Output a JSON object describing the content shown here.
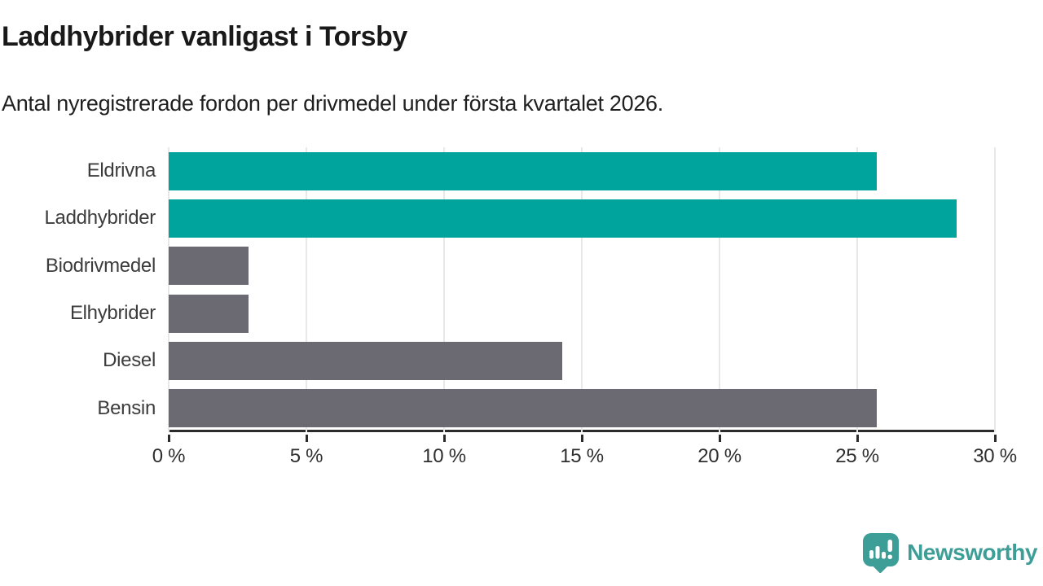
{
  "header": {
    "title": "Laddhybrider vanligast i Torsby",
    "subtitle": "Antal nyregistrerade fordon per drivmedel under första kvartalet 2026."
  },
  "chart_data": {
    "type": "bar",
    "orientation": "horizontal",
    "title": "Laddhybrider vanligast i Torsby",
    "subtitle": "Antal nyregistrerade fordon per drivmedel under första kvartalet 2026.",
    "categories": [
      "Eldrivna",
      "Laddhybrider",
      "Biodrivmedel",
      "Elhybrider",
      "Diesel",
      "Bensin"
    ],
    "values": [
      25.7,
      28.6,
      2.9,
      2.9,
      14.3,
      25.7
    ],
    "unit": "%",
    "bar_colors": [
      "#00a49c",
      "#00a49c",
      "#6b6a72",
      "#6b6a72",
      "#6b6a72",
      "#6b6a72"
    ],
    "highlight_color": "#00a49c",
    "base_color": "#6b6a72",
    "xlim": [
      0,
      30
    ],
    "x_ticks": [
      0,
      5,
      10,
      15,
      20,
      25,
      30
    ],
    "x_tick_labels": [
      "0 %",
      "5 %",
      "10 %",
      "15 %",
      "20 %",
      "25 %",
      "30 %"
    ],
    "grid": true,
    "gridline_color": "#e8e8e8",
    "axis_color": "#2b2b2b",
    "legend": "none",
    "value_labels_shown": false
  },
  "footer": {
    "brand": "Newsworthy",
    "brand_color": "#3d9e98",
    "logo_icon": "newsworthy-chart-speech-bubble-icon"
  }
}
